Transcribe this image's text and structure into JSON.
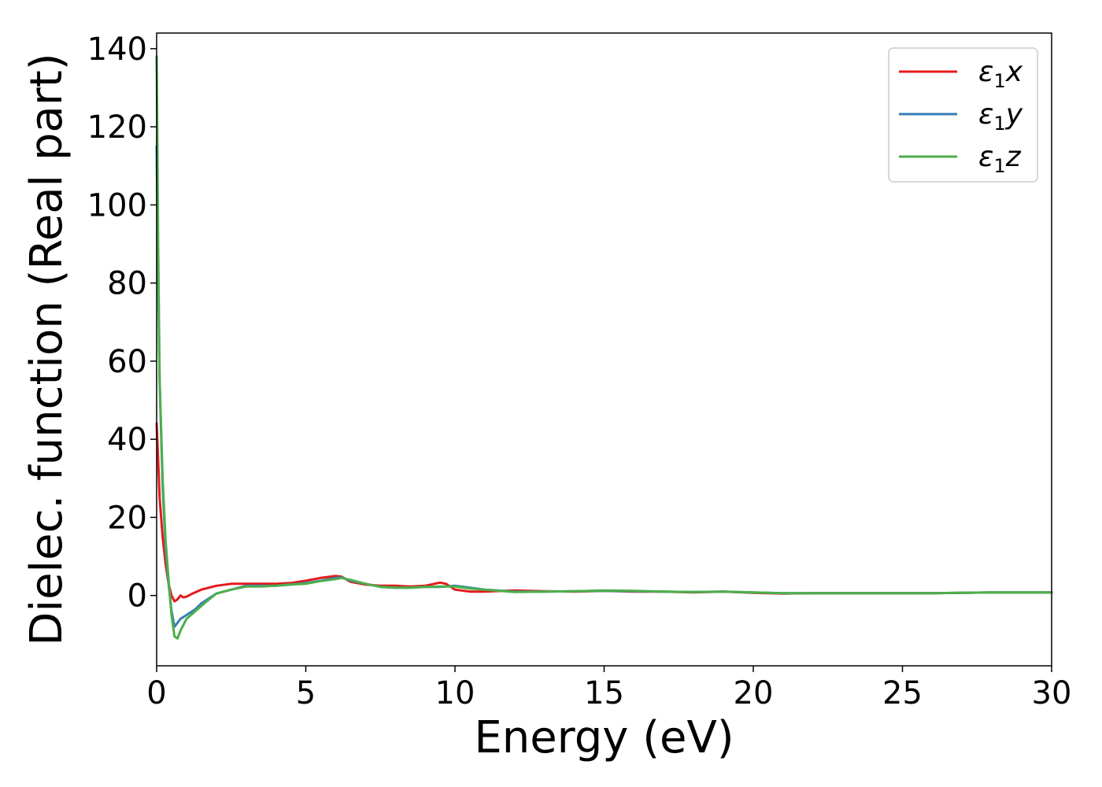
{
  "chart_data": {
    "type": "line",
    "title": "",
    "xlabel": "Energy (eV)",
    "ylabel": "Dielec. function (Real part)",
    "xlim": [
      0,
      30
    ],
    "ylim": [
      -18,
      144
    ],
    "xticks": [
      0,
      5,
      10,
      15,
      20,
      25,
      30
    ],
    "yticks": [
      0,
      20,
      40,
      60,
      80,
      100,
      120,
      140
    ],
    "grid": false,
    "legend_position": "top-right",
    "series": [
      {
        "name": "ε1x",
        "legend_main": "ε",
        "legend_sub": "1",
        "legend_var": "x",
        "color": "#e41a1c",
        "x": [
          0,
          0.05,
          0.1,
          0.2,
          0.3,
          0.4,
          0.5,
          0.6,
          0.7,
          0.8,
          0.9,
          1.0,
          1.2,
          1.5,
          2.0,
          2.5,
          3.0,
          3.5,
          4.0,
          4.5,
          5.0,
          5.5,
          6.0,
          6.2,
          6.5,
          7.0,
          7.5,
          8.0,
          8.5,
          9.0,
          9.5,
          9.7,
          10.0,
          10.5,
          11.0,
          12.0,
          13.0,
          14.0,
          15.0,
          16.0,
          17.0,
          18.0,
          19.0,
          20.0,
          21.0,
          22.0,
          23.0,
          24.0,
          25.0,
          26.0,
          27.0,
          28.0,
          29.0,
          30.0
        ],
        "y": [
          44,
          35,
          25,
          15,
          8,
          3,
          0,
          -1.5,
          -1,
          0,
          -0.5,
          -0.3,
          0.5,
          1.5,
          2.5,
          3,
          3,
          3,
          3,
          3.2,
          3.8,
          4.5,
          5.0,
          4.8,
          3.5,
          2.8,
          2.5,
          2.5,
          2.3,
          2.5,
          3.3,
          3.0,
          1.5,
          1.0,
          1.0,
          1.3,
          1.1,
          1.0,
          1.2,
          1.0,
          1.0,
          0.8,
          1.0,
          0.7,
          0.5,
          0.6,
          0.6,
          0.6,
          0.6,
          0.6,
          0.7,
          0.8,
          0.8,
          0.8
        ]
      },
      {
        "name": "ε1y",
        "legend_main": "ε",
        "legend_sub": "1",
        "legend_var": "y",
        "color": "#377eb8",
        "x": [
          0,
          0.03,
          0.1,
          0.2,
          0.3,
          0.4,
          0.5,
          0.6,
          0.7,
          0.8,
          1.0,
          1.3,
          1.5,
          2.0,
          2.5,
          3.0,
          3.5,
          4.0,
          4.5,
          5.0,
          5.5,
          6.0,
          6.2,
          6.5,
          7.0,
          7.5,
          8.0,
          8.5,
          9.0,
          9.5,
          10.0,
          10.5,
          11.0,
          12.0,
          13.0,
          14.0,
          15.0,
          16.0,
          17.0,
          18.0,
          19.0,
          20.0,
          21.0,
          22.0,
          23.0,
          24.0,
          25.0,
          26.0,
          27.0,
          28.0,
          29.0,
          30.0
        ],
        "y": [
          115,
          95,
          55,
          28,
          12,
          3,
          -4,
          -8,
          -7,
          -6,
          -5,
          -3.5,
          -2,
          0.5,
          1.5,
          2.5,
          2.5,
          2.5,
          2.8,
          3.2,
          3.8,
          4.5,
          4.6,
          3.8,
          3.0,
          2.2,
          2.0,
          2.0,
          2.2,
          2.2,
          2.5,
          2.0,
          1.5,
          1.0,
          1.0,
          1.1,
          1.2,
          1.1,
          1.0,
          0.9,
          1.0,
          0.8,
          0.6,
          0.6,
          0.6,
          0.6,
          0.6,
          0.6,
          0.7,
          0.8,
          0.8,
          0.8
        ]
      },
      {
        "name": "ε1z",
        "legend_main": "ε",
        "legend_sub": "1",
        "legend_var": "z",
        "color": "#4daf4a",
        "x": [
          0,
          0.02,
          0.05,
          0.1,
          0.2,
          0.3,
          0.4,
          0.5,
          0.6,
          0.7,
          0.8,
          1.0,
          1.3,
          1.6,
          2.0,
          2.5,
          3.0,
          3.5,
          4.0,
          4.5,
          5.0,
          5.5,
          6.0,
          6.2,
          6.5,
          7.0,
          7.5,
          8.0,
          8.5,
          9.0,
          9.5,
          10.0,
          10.5,
          11.0,
          12.0,
          13.0,
          14.0,
          15.0,
          16.0,
          17.0,
          18.0,
          19.0,
          20.0,
          21.0,
          22.0,
          23.0,
          24.0,
          25.0,
          26.0,
          27.0,
          28.0,
          29.0,
          30.0
        ],
        "y": [
          138,
          120,
          90,
          55,
          30,
          14,
          4,
          -5,
          -10.5,
          -11,
          -9,
          -6,
          -4,
          -2,
          0.5,
          1.5,
          2.3,
          2.3,
          2.5,
          2.8,
          3.0,
          3.7,
          4.2,
          4.5,
          4.0,
          3.0,
          2.2,
          2.0,
          2.0,
          2.2,
          2.3,
          2.3,
          1.8,
          1.5,
          0.9,
          1.0,
          1.1,
          1.3,
          1.2,
          1.0,
          0.9,
          1.0,
          0.8,
          0.6,
          0.6,
          0.6,
          0.6,
          0.6,
          0.6,
          0.7,
          0.8,
          0.8,
          0.8
        ]
      }
    ]
  }
}
